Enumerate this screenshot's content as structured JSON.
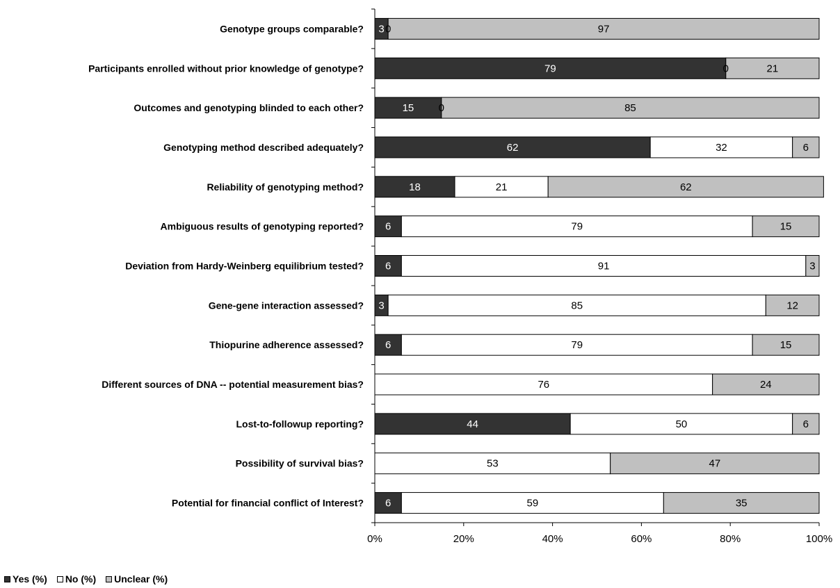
{
  "chart_data": {
    "type": "bar",
    "orientation": "horizontal",
    "stacked": true,
    "percent": true,
    "categories": [
      "Genotype groups comparable?",
      "Participants enrolled without prior knowledge of genotype?",
      "Outcomes and genotyping blinded to each other?",
      "Genotyping method described adequately?",
      "Reliability of genotyping method?",
      "Ambiguous results of genotyping  reported?",
      "Deviation from Hardy-Weinberg equilibrium tested?",
      "Gene-gene interaction assessed?",
      "Thiopurine adherence assessed?",
      "Different sources of DNA -- potential measurement bias?",
      "Lost-to-followup reporting?",
      "Possibility of survival bias?",
      "Potential for financial conflict of Interest?"
    ],
    "series": [
      {
        "name": "Yes (%)",
        "color": "#333333",
        "label_color": "#ffffff",
        "values": [
          3,
          79,
          15,
          62,
          18,
          6,
          6,
          3,
          6,
          0,
          44,
          0,
          6
        ]
      },
      {
        "name": "No (%)",
        "color": "#ffffff",
        "label_color": "#000000",
        "values": [
          0,
          0,
          0,
          32,
          21,
          79,
          91,
          85,
          79,
          76,
          50,
          53,
          59
        ]
      },
      {
        "name": "Unclear (%)",
        "color": "#c0c0c0",
        "label_color": "#000000",
        "values": [
          97,
          21,
          85,
          6,
          62,
          15,
          3,
          12,
          15,
          24,
          6,
          47,
          35
        ]
      }
    ],
    "data_labels": [
      [
        "3",
        "0",
        "97"
      ],
      [
        "79",
        "0",
        "21"
      ],
      [
        "15",
        "0",
        "85"
      ],
      [
        "62",
        "32",
        "6"
      ],
      [
        "18",
        "21",
        "62"
      ],
      [
        "6",
        "79",
        "15"
      ],
      [
        "6",
        "91",
        "3"
      ],
      [
        "3",
        "85",
        "12"
      ],
      [
        "6",
        "79",
        "15"
      ],
      [
        "",
        "76",
        "24"
      ],
      [
        "44",
        "50",
        "6"
      ],
      [
        "",
        "53",
        "47"
      ],
      [
        "6",
        "59",
        "35"
      ]
    ],
    "xticks": [
      "0%",
      "20%",
      "40%",
      "60%",
      "80%",
      "100%"
    ],
    "xlim": [
      0,
      100
    ],
    "grid": false,
    "legend_position": "bottom-left"
  }
}
